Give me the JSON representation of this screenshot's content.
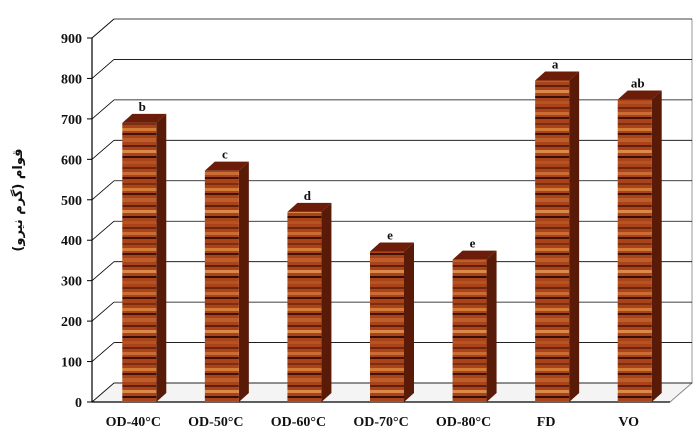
{
  "chart_data": {
    "type": "bar",
    "style": "3d",
    "categories": [
      "OD-40°C",
      "OD-50°C",
      "OD-60°C",
      "OD-70°C",
      "OD-80°C",
      "FD",
      "VO"
    ],
    "values": [
      690,
      572,
      470,
      372,
      352,
      795,
      748
    ],
    "data_labels": [
      "b",
      "c",
      "d",
      "e",
      "e",
      "a",
      "ab"
    ],
    "ylabel": "قوام (گرم نیرو)",
    "xlabel": "",
    "ylim": [
      0,
      900
    ],
    "yticks": [
      0,
      100,
      200,
      300,
      400,
      500,
      600,
      700,
      800,
      900
    ],
    "grid": true,
    "legend": "none",
    "colors": {
      "bar_front": "#a8431a",
      "bar_dark": "#3a0d04",
      "bar_light": "#d9803a",
      "bar_side": "#5a1a08",
      "bar_top": "#6b1d0a",
      "grid": "#000000",
      "floor": "#888888"
    }
  }
}
